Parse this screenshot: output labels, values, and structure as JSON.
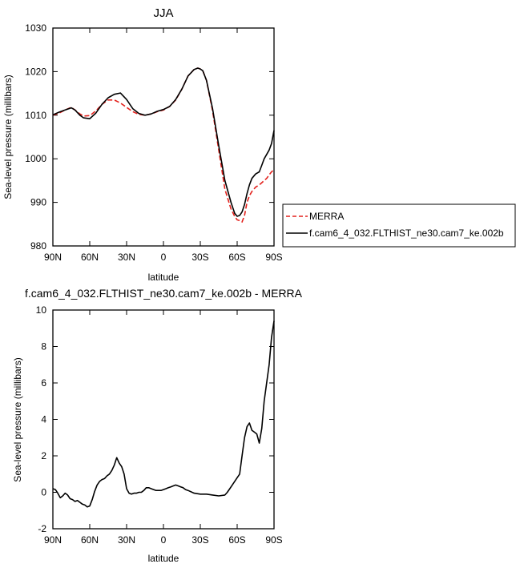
{
  "chart_data": [
    {
      "type": "line",
      "title": "JJA",
      "xlabel": "latitude",
      "ylabel": "Sea-level pressure (millibars)",
      "xlim": [
        90,
        -90
      ],
      "ylim": [
        980,
        1030
      ],
      "xticks": [
        90,
        60,
        30,
        0,
        -30,
        -60,
        -90
      ],
      "xtick_labels": [
        "90N",
        "60N",
        "30N",
        "0",
        "30S",
        "60S",
        "90S"
      ],
      "yticks": [
        980,
        990,
        1000,
        1010,
        1020,
        1030
      ],
      "ytick_labels": [
        "980",
        "990",
        "1000",
        "1010",
        "1020",
        "1030"
      ],
      "grid": false,
      "legend": "right",
      "series": [
        {
          "name": "MERRA",
          "color": "#e3211c",
          "dash": "dashed",
          "x": [
            90,
            85,
            80,
            75,
            72,
            68,
            65,
            60,
            55,
            50,
            45,
            40,
            35,
            30,
            25,
            20,
            15,
            10,
            5,
            0,
            -5,
            -10,
            -15,
            -20,
            -25,
            -28,
            -30,
            -32,
            -35,
            -40,
            -45,
            -50,
            -55,
            -58,
            -60,
            -62,
            -64,
            -66,
            -68,
            -70,
            -72,
            -75,
            -78,
            -80,
            -82,
            -84,
            -86,
            -88,
            -90
          ],
          "y": [
            1010,
            1010.5,
            1011.2,
            1011.8,
            1011.2,
            1010.3,
            1009.8,
            1009.9,
            1011,
            1012.5,
            1013.5,
            1013.5,
            1012.8,
            1011.8,
            1010.8,
            1010.2,
            1010,
            1010.3,
            1010.8,
            1011.2,
            1012,
            1013.5,
            1016,
            1019,
            1020.5,
            1020.8,
            1020.6,
            1020.2,
            1018,
            1011,
            1002,
            993,
            988.5,
            986.8,
            986,
            985.8,
            985.5,
            987,
            990,
            991.5,
            992.5,
            993.5,
            994,
            994.5,
            995,
            995.5,
            996.3,
            997,
            997.5
          ]
        },
        {
          "name": "f.cam6_4_032.FLTHIST_ne30.cam7_ke.002b",
          "color": "#000000",
          "dash": "solid",
          "x": [
            90,
            85,
            80,
            75,
            72,
            68,
            65,
            60,
            55,
            50,
            45,
            40,
            35,
            30,
            25,
            20,
            15,
            10,
            5,
            0,
            -5,
            -10,
            -15,
            -20,
            -25,
            -28,
            -30,
            -32,
            -35,
            -40,
            -45,
            -50,
            -55,
            -58,
            -60,
            -62,
            -64,
            -66,
            -68,
            -70,
            -72,
            -75,
            -78,
            -80,
            -82,
            -84,
            -86,
            -88,
            -90
          ],
          "y": [
            1010.1,
            1010.7,
            1011.2,
            1011.7,
            1011.2,
            1010,
            1009.4,
            1009.2,
            1010.5,
            1012.5,
            1014,
            1014.8,
            1015.1,
            1013.6,
            1011.5,
            1010.4,
            1010,
            1010.3,
            1010.9,
            1011.3,
            1012,
            1013.6,
            1016,
            1019,
            1020.5,
            1020.8,
            1020.6,
            1020.2,
            1018,
            1011.5,
            1003,
            995,
            990,
            987.5,
            986.8,
            987,
            987.8,
            989.5,
            992,
            994,
            995.5,
            996.5,
            997,
            998.5,
            1000,
            1001,
            1002,
            1003.5,
            1006.5
          ]
        }
      ]
    },
    {
      "type": "line",
      "title": "f.cam6_4_032.FLTHIST_ne30.cam7_ke.002b - MERRA",
      "xlabel": "latitude",
      "ylabel": "Sea-level pressure (millibars)",
      "xlim": [
        90,
        -90
      ],
      "ylim": [
        -2,
        10
      ],
      "xticks": [
        90,
        60,
        30,
        0,
        -30,
        -60,
        -90
      ],
      "xtick_labels": [
        "90N",
        "60N",
        "30N",
        "0",
        "30S",
        "60S",
        "90S"
      ],
      "yticks": [
        -2,
        0,
        2,
        4,
        6,
        8,
        10
      ],
      "ytick_labels": [
        "-2",
        "0",
        "2",
        "4",
        "6",
        "8",
        "10"
      ],
      "grid": false,
      "series": [
        {
          "color": "#000000",
          "dash": "solid",
          "x": [
            90,
            88,
            86,
            84,
            82,
            80,
            78,
            76,
            74,
            72,
            70,
            68,
            66,
            64,
            62,
            60,
            58,
            56,
            54,
            52,
            50,
            48,
            46,
            44,
            42,
            40,
            38,
            36,
            34,
            32,
            30,
            28,
            26,
            24,
            22,
            20,
            18,
            16,
            14,
            12,
            10,
            8,
            6,
            4,
            2,
            0,
            -2,
            -4,
            -6,
            -8,
            -10,
            -12,
            -14,
            -16,
            -18,
            -20,
            -25,
            -30,
            -35,
            -40,
            -45,
            -50,
            -52,
            -54,
            -56,
            -58,
            -60,
            -62,
            -64,
            -66,
            -68,
            -70,
            -72,
            -74,
            -76,
            -78,
            -80,
            -82,
            -84,
            -86,
            -88,
            -90
          ],
          "y": [
            0.2,
            0.15,
            -0.05,
            -0.3,
            -0.2,
            -0.05,
            -0.15,
            -0.35,
            -0.4,
            -0.5,
            -0.45,
            -0.55,
            -0.65,
            -0.7,
            -0.8,
            -0.75,
            -0.4,
            0.05,
            0.4,
            0.6,
            0.7,
            0.75,
            0.9,
            1.0,
            1.2,
            1.5,
            1.9,
            1.6,
            1.4,
            1.0,
            0.2,
            -0.05,
            -0.1,
            -0.05,
            -0.05,
            0.0,
            0.0,
            0.1,
            0.25,
            0.25,
            0.2,
            0.15,
            0.1,
            0.1,
            0.1,
            0.15,
            0.2,
            0.25,
            0.3,
            0.35,
            0.4,
            0.35,
            0.3,
            0.25,
            0.15,
            0.1,
            -0.05,
            -0.1,
            -0.1,
            -0.15,
            -0.2,
            -0.15,
            0.0,
            0.2,
            0.4,
            0.6,
            0.8,
            1.0,
            2.0,
            3.0,
            3.6,
            3.8,
            3.4,
            3.3,
            3.2,
            2.7,
            3.5,
            5.0,
            6.0,
            7.0,
            8.5,
            9.4
          ]
        }
      ]
    }
  ]
}
